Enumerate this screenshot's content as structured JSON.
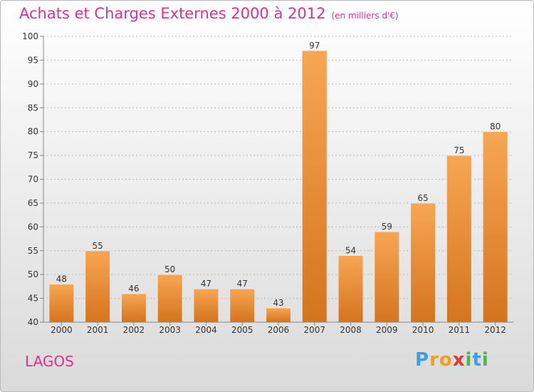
{
  "title": {
    "main": "Achats et Charges Externes 2000 à 2012",
    "unit": "(en milliers d'€)"
  },
  "place_name": "LAGOS",
  "brand": {
    "letters": [
      "P",
      "r",
      "o",
      "x",
      "i",
      "t",
      "i"
    ],
    "colors": [
      "#3d9fe0",
      "#f39c21",
      "#f39c21",
      "#d93a3a",
      "#4fb548",
      "#3d9fe0",
      "#4fb548"
    ]
  },
  "colors": {
    "title": "#e0308a",
    "bar_light": "#f8a652",
    "bar_dark": "#d4741f",
    "axis": "#888888",
    "grid": "#bbbbbb"
  },
  "chart_data": {
    "type": "bar",
    "categories": [
      "2000",
      "2001",
      "2002",
      "2003",
      "2004",
      "2005",
      "2006",
      "2007",
      "2008",
      "2009",
      "2010",
      "2011",
      "2012"
    ],
    "values": [
      48,
      55,
      46,
      50,
      47,
      47,
      43,
      97,
      54,
      59,
      65,
      75,
      80
    ],
    "ylim": [
      40,
      100
    ],
    "yticks": [
      40,
      45,
      50,
      55,
      60,
      65,
      70,
      75,
      80,
      85,
      90,
      95,
      100
    ],
    "grid": true
  }
}
